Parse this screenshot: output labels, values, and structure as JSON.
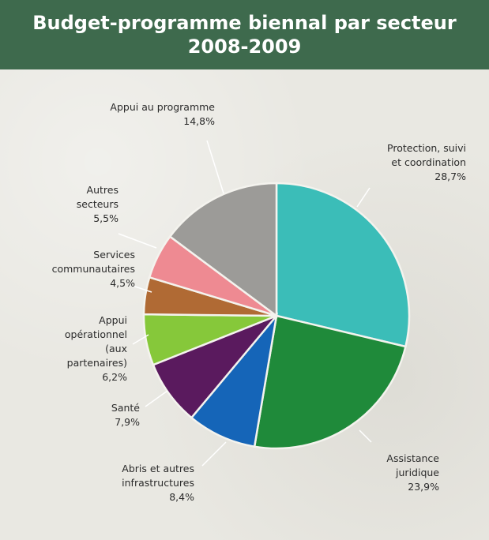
{
  "chart_data": {
    "type": "pie",
    "title": "Budget-programme biennal par secteur",
    "subtitle": "2008-2009",
    "slices": [
      {
        "label_lines": [
          "Protection, suivi",
          "et coordination"
        ],
        "percent_label": "28,7%",
        "value": 28.7,
        "color": "#3bbdb8"
      },
      {
        "label_lines": [
          "Assistance",
          "juridique"
        ],
        "percent_label": "23,9%",
        "value": 23.9,
        "color": "#1f8a3a"
      },
      {
        "label_lines": [
          "Abris et autres",
          "infrastructures"
        ],
        "percent_label": "8,4%",
        "value": 8.4,
        "color": "#1565b8"
      },
      {
        "label_lines": [
          "Santé"
        ],
        "percent_label": "7,9%",
        "value": 7.9,
        "color": "#5a1a5e"
      },
      {
        "label_lines": [
          "Appui",
          "opérationnel",
          "(aux",
          "partenaires)"
        ],
        "percent_label": "6,2%",
        "value": 6.2,
        "color": "#86c83a"
      },
      {
        "label_lines": [
          "Services",
          "communautaires"
        ],
        "percent_label": "4,5%",
        "value": 4.5,
        "color": "#b06a34"
      },
      {
        "label_lines": [
          "Autres",
          "secteurs"
        ],
        "percent_label": "5,5%",
        "value": 5.5,
        "color": "#ee8a92"
      },
      {
        "label_lines": [
          "Appui au programme"
        ],
        "percent_label": "14,8%",
        "value": 14.8,
        "color": "#9c9b98"
      }
    ]
  }
}
